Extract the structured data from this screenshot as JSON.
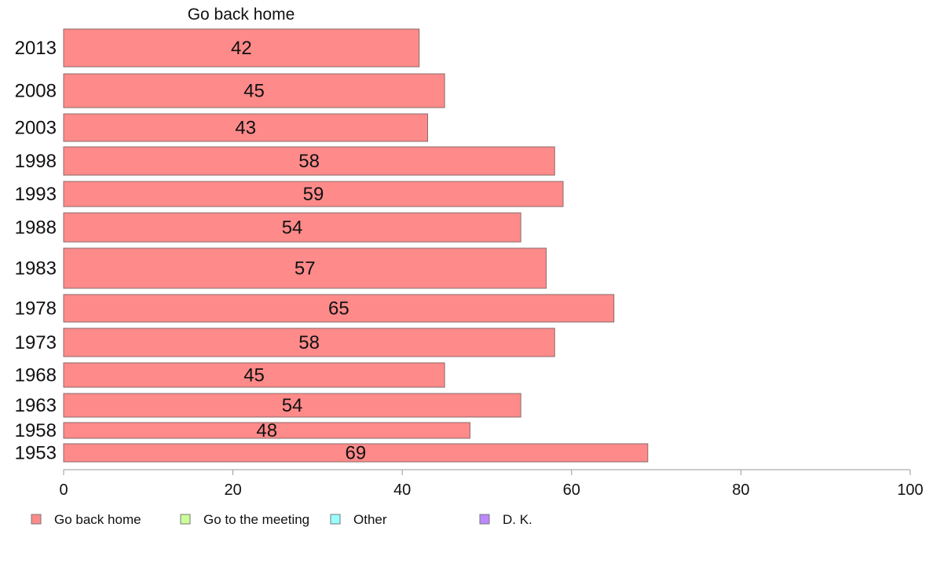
{
  "chart_data": {
    "type": "bar",
    "orientation": "horizontal",
    "title": "Go back home",
    "categories": [
      "2013",
      "2008",
      "2003",
      "1998",
      "1993",
      "1988",
      "1983",
      "1978",
      "1973",
      "1968",
      "1963",
      "1958",
      "1953"
    ],
    "series": [
      {
        "name": "Go back home",
        "color": "#ff8a8a",
        "values": [
          42,
          45,
          43,
          58,
          59,
          54,
          57,
          65,
          58,
          45,
          54,
          48,
          69
        ]
      }
    ],
    "data_labels": [
      "42",
      "45",
      "43",
      "58",
      "59",
      "54",
      "57",
      "65",
      "58",
      "45",
      "54",
      "48",
      "69"
    ],
    "xlim": [
      0,
      100
    ],
    "xticks": [
      0,
      20,
      40,
      60,
      80,
      100
    ],
    "xtick_labels": [
      "0",
      "20",
      "40",
      "60",
      "80",
      "100"
    ],
    "grid": false,
    "legend": {
      "position": "bottom",
      "items": [
        {
          "label": "Go back home",
          "color": "#ff8a8a"
        },
        {
          "label": "Go to the meeting",
          "color": "#ccff99"
        },
        {
          "label": "Other",
          "color": "#99ffff"
        },
        {
          "label": "D. K.",
          "color": "#bb88ff"
        }
      ]
    }
  }
}
